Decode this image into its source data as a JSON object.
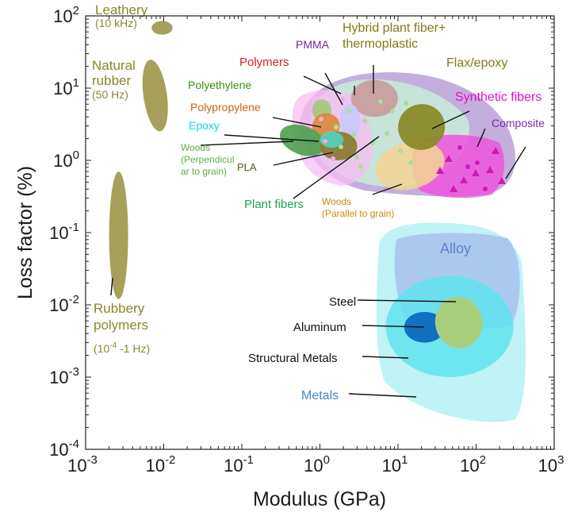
{
  "chart_data": {
    "type": "scatter",
    "title": "",
    "xlabel": "Modulus (GPa)",
    "ylabel": "Loss factor (%)",
    "xscale": "log",
    "yscale": "log",
    "xlim": [
      0.001,
      1000
    ],
    "ylim": [
      0.0001,
      100
    ],
    "grid": false,
    "x_tick_labels": [
      {
        "base": "10",
        "exp": "-3"
      },
      {
        "base": "10",
        "exp": "-2"
      },
      {
        "base": "10",
        "exp": "-1"
      },
      {
        "base": "10",
        "exp": "0"
      },
      {
        "base": "10",
        "exp": "1"
      },
      {
        "base": "10",
        "exp": "2"
      },
      {
        "base": "10",
        "exp": "3"
      }
    ],
    "y_tick_labels": [
      {
        "base": "10",
        "exp": "-4"
      },
      {
        "base": "10",
        "exp": "-3"
      },
      {
        "base": "10",
        "exp": "-2"
      },
      {
        "base": "10",
        "exp": "-1"
      },
      {
        "base": "10",
        "exp": "0"
      },
      {
        "base": "10",
        "exp": "1"
      },
      {
        "base": "10",
        "exp": "2"
      }
    ],
    "regions": [
      {
        "id": "metals",
        "x_range": [
          3,
          500
        ],
        "y_range": [
          0.0003,
          0.12
        ],
        "color": "#bff3f6"
      },
      {
        "id": "alloy",
        "x_range": [
          5,
          400
        ],
        "y_range": [
          0.005,
          0.15
        ],
        "color": "#a9c4ee"
      },
      {
        "id": "structural-metals",
        "x_range": [
          7,
          300
        ],
        "y_range": [
          0.001,
          0.025
        ],
        "color": "#5fe3ee"
      },
      {
        "id": "aluminum",
        "x_range": [
          12,
          40
        ],
        "y_range": [
          0.003,
          0.008
        ],
        "color": "#1071c3"
      },
      {
        "id": "steel",
        "x_range": [
          30,
          120
        ],
        "y_range": [
          0.0025,
          0.013
        ],
        "color": "#a9cf7e"
      },
      {
        "id": "composite",
        "x_range": [
          0.5,
          250
        ],
        "y_range": [
          0.3,
          20
        ],
        "color": "#b49ad6"
      },
      {
        "id": "plant-fibers",
        "x_range": [
          0.7,
          60
        ],
        "y_range": [
          0.4,
          12
        ],
        "color": "#c9ecd8"
      },
      {
        "id": "synthetic-fibers",
        "x_range": [
          10,
          150
        ],
        "y_range": [
          0.3,
          3
        ],
        "color": "#ee55dd"
      },
      {
        "id": "woods-parallel",
        "x_range": [
          5,
          40
        ],
        "y_range": [
          0.4,
          1.8
        ],
        "color": "#f2d694"
      },
      {
        "id": "hybrid-plant-fiber-thermoplastic",
        "x_range": [
          2.5,
          10
        ],
        "y_range": [
          4,
          13
        ],
        "color": "#c79fa0"
      },
      {
        "id": "flax-epoxy",
        "x_range": [
          10,
          40
        ],
        "y_range": [
          1.4,
          6
        ],
        "color": "#8a8a2a"
      },
      {
        "id": "polymers",
        "x_range": [
          0.3,
          5
        ],
        "y_range": [
          0.5,
          12
        ],
        "color": "#f8bdf1"
      },
      {
        "id": "pmma",
        "x_range": [
          1.8,
          3.3
        ],
        "y_range": [
          2,
          6
        ],
        "color": "#c8c9f8"
      },
      {
        "id": "polyethylene",
        "x_range": [
          0.8,
          1.4
        ],
        "y_range": [
          3.5,
          7
        ],
        "color": "#a3c77a"
      },
      {
        "id": "polypropylene",
        "x_range": [
          0.8,
          1.8
        ],
        "y_range": [
          2,
          4.5
        ],
        "color": "#d88a3e"
      },
      {
        "id": "woods-perpendicular",
        "x_range": [
          0.3,
          1.2
        ],
        "y_range": [
          1.2,
          3
        ],
        "color": "#4ba04b"
      },
      {
        "id": "pla",
        "x_range": [
          1,
          3
        ],
        "y_range": [
          1,
          2.5
        ],
        "color": "#8b7d33"
      },
      {
        "id": "epoxy",
        "x_range": [
          1,
          2
        ],
        "y_range": [
          1.5,
          2.5
        ],
        "color": "#4fd6c8"
      },
      {
        "id": "leathery",
        "x_range": [
          0.007,
          0.013
        ],
        "y_range": [
          55,
          85
        ],
        "color": "#a6a05a"
      },
      {
        "id": "natural-rubber",
        "x_range": [
          0.0055,
          0.011
        ],
        "y_range": [
          2.5,
          25
        ],
        "color": "#a6a05a"
      },
      {
        "id": "rubbery-polymers",
        "x_range": [
          0.002,
          0.0035
        ],
        "y_range": [
          0.012,
          0.7
        ],
        "color": "#a6a05a"
      }
    ],
    "annotations": [
      {
        "id": "leathery",
        "lines": [
          "Leathery",
          "(10 kHz)"
        ],
        "color": "#8a8530"
      },
      {
        "id": "natural-rubber",
        "lines": [
          "Natural",
          "rubber",
          "(50 Hz)"
        ],
        "color": "#8a8530"
      },
      {
        "id": "rubbery-polymers",
        "lines": [
          "Rubbery",
          "polymers"
        ],
        "color": "#8a8530"
      },
      {
        "id": "rubbery-polymers-freq",
        "text_before": "(10",
        "sup": "-4",
        "text_after": " -1 Hz)",
        "color": "#8a8530"
      },
      {
        "id": "polymers",
        "lines": [
          "Polymers"
        ],
        "color": "#e12020"
      },
      {
        "id": "pmma",
        "lines": [
          "PMMA"
        ],
        "color": "#6a2aa8"
      },
      {
        "id": "hybrid",
        "lines": [
          "Hybrid plant fiber+",
          "thermoplastic"
        ],
        "color": "#807a15"
      },
      {
        "id": "flax-epoxy",
        "lines": [
          "Flax/epoxy"
        ],
        "color": "#807a15"
      },
      {
        "id": "polyethylene",
        "lines": [
          "Polyethylene"
        ],
        "color": "#3f8f1a"
      },
      {
        "id": "polypropylene",
        "lines": [
          "Polypropylene"
        ],
        "color": "#d06010"
      },
      {
        "id": "epoxy",
        "lines": [
          "Epoxy"
        ],
        "color": "#12d7e0"
      },
      {
        "id": "woods-perpendicular",
        "lines": [
          "Woods",
          "(Perpendicul",
          "ar to grain)"
        ],
        "color": "#62ab46"
      },
      {
        "id": "pla",
        "lines": [
          "PLA"
        ],
        "color": "#5a5a22"
      },
      {
        "id": "plant-fibers",
        "lines": [
          "Plant fibers"
        ],
        "color": "#19a84e"
      },
      {
        "id": "woods-parallel",
        "lines": [
          "Woods",
          "(Parallel to grain)"
        ],
        "color": "#c48a12"
      },
      {
        "id": "synthetic-fibers",
        "lines": [
          "Synthetic fibers"
        ],
        "color": "#e010c8"
      },
      {
        "id": "composite",
        "lines": [
          "Composite"
        ],
        "color": "#7a2aa8"
      },
      {
        "id": "alloy",
        "lines": [
          "Alloy"
        ],
        "color": "#5b84cc"
      },
      {
        "id": "steel",
        "lines": [
          "Steel"
        ],
        "color": "#111111"
      },
      {
        "id": "aluminum",
        "lines": [
          "Aluminum"
        ],
        "color": "#111111"
      },
      {
        "id": "structural-metals",
        "lines": [
          "Structural Metals"
        ],
        "color": "#111111"
      },
      {
        "id": "metals",
        "lines": [
          "Metals"
        ],
        "color": "#4a86c8"
      }
    ]
  }
}
